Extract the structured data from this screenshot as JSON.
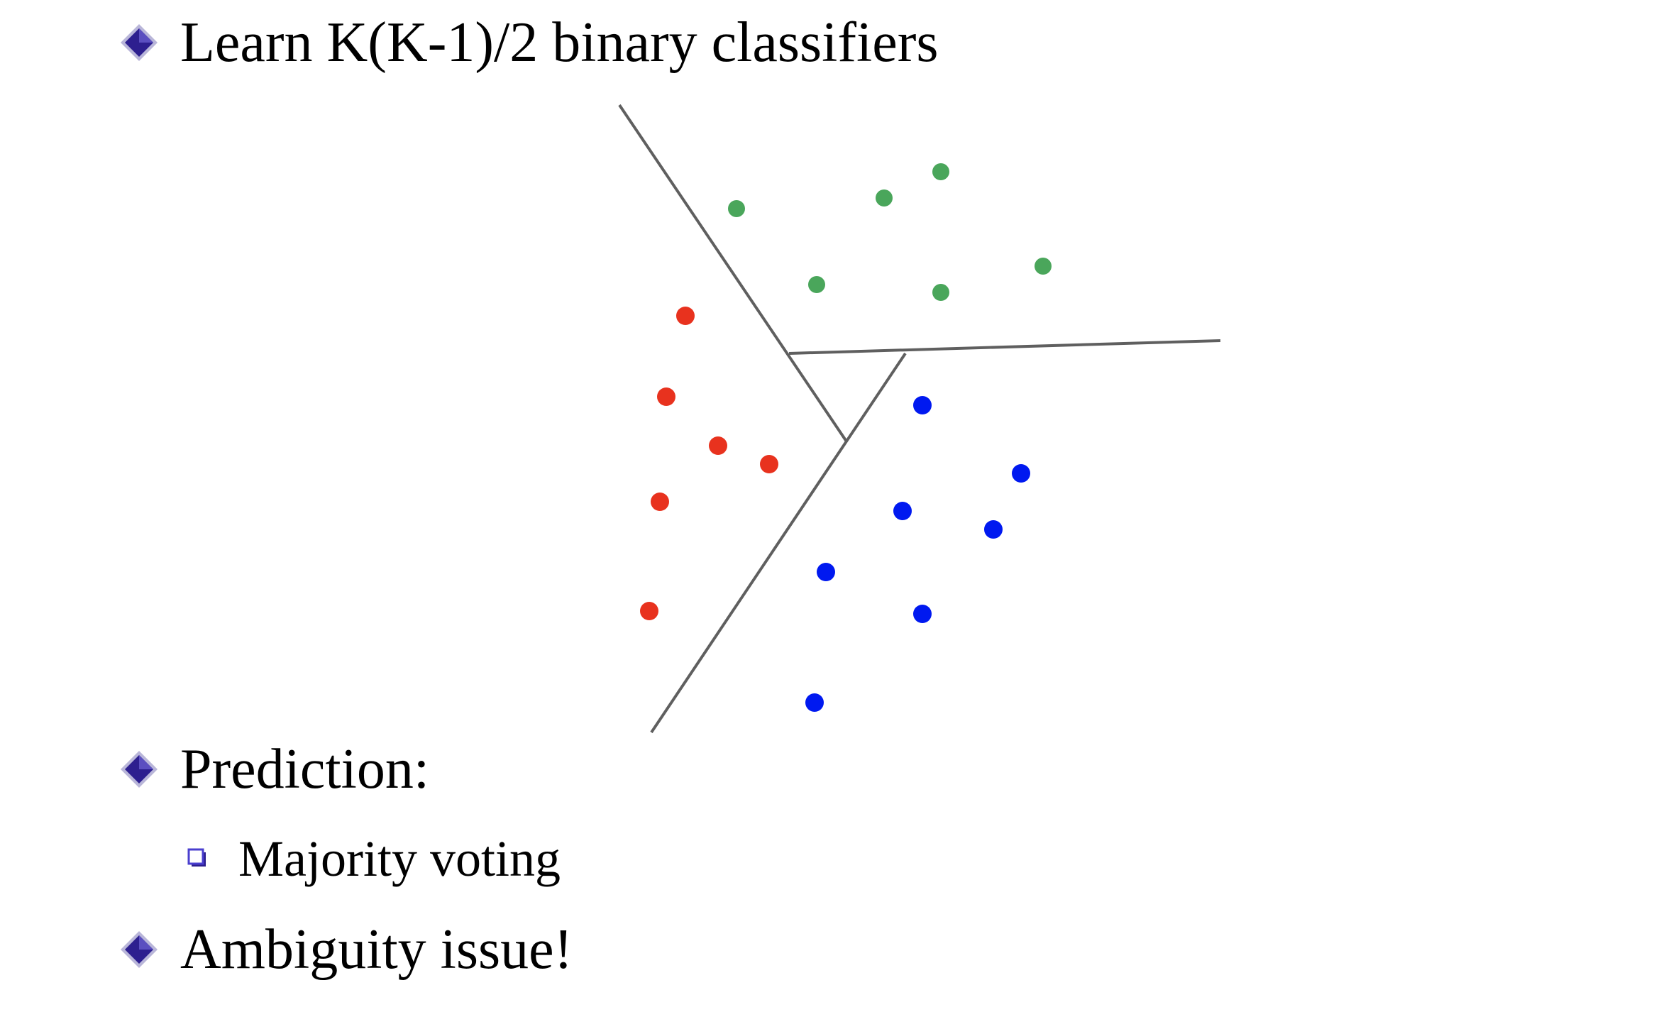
{
  "bullets": {
    "learn": "Learn K(K-1)/2 binary classifiers",
    "prediction": "Prediction:",
    "majority_voting": "Majority voting",
    "ambiguity": "Ambiguity issue!"
  },
  "colors": {
    "class_red": "#e8321e",
    "class_green": "#4aa65b",
    "class_blue": "#0019f0",
    "boundary": "#5f5f5f",
    "diamond_fill": "#2d1f8f",
    "square_outline": "#4a3fcf"
  },
  "icons": {
    "main_bullet": "diamond-bullet-icon",
    "sub_bullet": "square-bullet-icon"
  }
}
